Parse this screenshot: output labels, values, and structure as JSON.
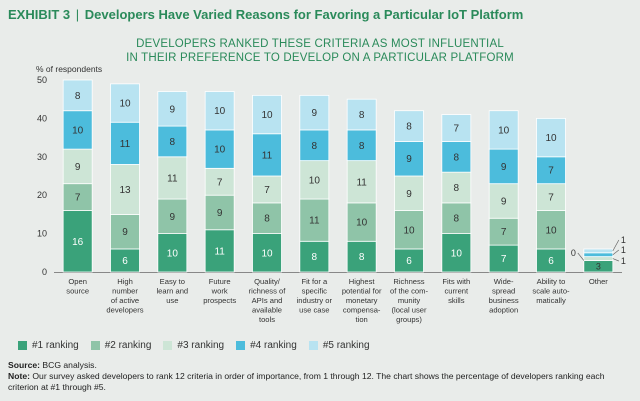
{
  "header": {
    "exhibit_label": "EXHIBIT 3",
    "separator": "|",
    "title": "Developers Have Varied Reasons for Favoring a Particular IoT Platform"
  },
  "chart_title_lines": [
    "DEVELOPERS RANKED THESE CRITERIA AS MOST INFLUENTIAL",
    "IN THEIR PREFERENCE TO DEVELOP ON A PARTICULAR PLATFORM"
  ],
  "colors": {
    "rank1": "#3aa27a",
    "rank2": "#8fc4a8",
    "rank3": "#cde5d6",
    "rank4": "#4cbcdc",
    "rank5": "#b8e3f1",
    "title_green": "#2a8a5a",
    "background": "#e9ecea"
  },
  "chart_data": {
    "type": "bar",
    "stacked": true,
    "ylabel": "% of respondents",
    "ylim": [
      0,
      50
    ],
    "yticks": [
      0,
      10,
      20,
      30,
      40,
      50
    ],
    "categories": [
      [
        "Open",
        "source"
      ],
      [
        "High",
        "number",
        "of active",
        "developers"
      ],
      [
        "Easy to",
        "learn and",
        "use"
      ],
      [
        "Future",
        "work",
        "prospects"
      ],
      [
        "Quality/",
        "richness of",
        "APIs and",
        "available",
        "tools"
      ],
      [
        "Fit for a",
        "specific",
        "industry or",
        "use case"
      ],
      [
        "Highest",
        "potential for",
        "monetary",
        "compensa-",
        "tion"
      ],
      [
        "Richness",
        "of the com-",
        "munity",
        "(local user",
        "groups)"
      ],
      [
        "Fits with",
        "current",
        "skills"
      ],
      [
        "Wide-",
        "spread",
        "business",
        "adoption"
      ],
      [
        "Ability to",
        "scale auto-",
        "matically"
      ],
      [
        "Other"
      ]
    ],
    "series": [
      {
        "name": "#1 ranking",
        "values": [
          16,
          6,
          10,
          11,
          10,
          8,
          8,
          6,
          10,
          7,
          6,
          3
        ]
      },
      {
        "name": "#2 ranking",
        "values": [
          7,
          9,
          9,
          9,
          8,
          11,
          10,
          10,
          8,
          7,
          10,
          0
        ]
      },
      {
        "name": "#3 ranking",
        "values": [
          9,
          13,
          11,
          7,
          7,
          10,
          11,
          9,
          8,
          9,
          7,
          1
        ]
      },
      {
        "name": "#4 ranking",
        "values": [
          10,
          11,
          8,
          10,
          11,
          8,
          8,
          9,
          8,
          9,
          7,
          1
        ]
      },
      {
        "name": "#5 ranking",
        "values": [
          8,
          10,
          9,
          10,
          10,
          9,
          8,
          8,
          7,
          10,
          10,
          1
        ]
      }
    ]
  },
  "legend": [
    "#1 ranking",
    "#2 ranking",
    "#3 ranking",
    "#4 ranking",
    "#5 ranking"
  ],
  "notes": {
    "source_label": "Source:",
    "source_text": "BCG analysis.",
    "note_label": "Note:",
    "note_text": "Our survey asked developers to rank 12 criteria in order of importance, from 1 through 12. The chart shows the percentage of developers ranking each criterion at #1 through #5."
  }
}
